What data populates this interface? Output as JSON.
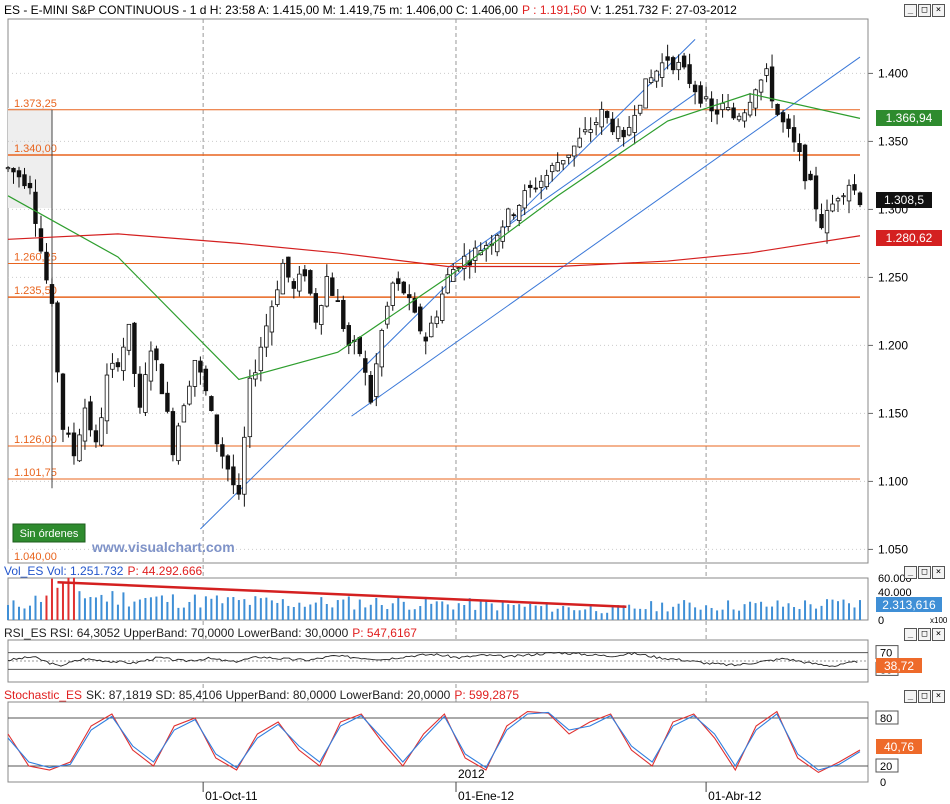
{
  "header": {
    "main": {
      "prefix": "ES - E-MINI S&P CONTINUOUS - 1 d H: 23:58 A: 1.415,00 M: 1.419,75 m: 1.406,00 C: 1.406,00",
      "p": "P : 1.191,50",
      "suffix": "V: 1.251.732  F: 27-03-2012"
    },
    "vol": {
      "prefix": "Vol_ES  Vol: 1.251.732",
      "p": "P: 44.292.666"
    },
    "rsi": {
      "prefix": "RSI_ES  RSI: 64,3052  UpperBand: 70,0000  LowerBand: 30,0000",
      "p": "P: 547,6167"
    },
    "stoch": {
      "prefix": "SK: 87,1819  SD: 85,4106  UpperBand: 80,0000  LowerBand: 20,0000",
      "name": "Stochastic_ES",
      "p": "P: 599,2875"
    }
  },
  "window_controls": [
    "_",
    "□",
    "×"
  ],
  "badges": {
    "green": "1.366,94",
    "black": "1.308,5",
    "red": "1.280,62",
    "vol": "2.313,616",
    "rsi": "38,72",
    "stoch": "40,76",
    "sin_ordenes": "Sin órdenes"
  },
  "watermark": "www.visualchart.com",
  "colors": {
    "ma_green": "#2e9e2e",
    "ma_red": "#d42020",
    "trend_blue": "#3a78d8",
    "horizontal": "#e8641e",
    "volume_bar": "#3f8fd6",
    "rsi_line": "#222222",
    "sk_line": "#e03030",
    "sd_line": "#2f7fe0"
  },
  "chart_data": [
    {
      "type": "candlestick",
      "title": "ES - E-MINI S&P CONTINUOUS",
      "y_ticks": [
        "1.050",
        "1.100",
        "1.150",
        "1.200",
        "1.250",
        "1.300",
        "1.350",
        "1.400"
      ],
      "x_ticks": [
        "01-Oct-11",
        "01-Ene-12",
        "01-Abr-12"
      ],
      "year_marker": "2012",
      "ylim": [
        1040,
        1440
      ],
      "horizontal_levels": [
        {
          "label": "1.373,25",
          "value": 1373.25
        },
        {
          "label": "1.340,00",
          "value": 1340.0
        },
        {
          "label": "1.260,25",
          "value": 1260.25
        },
        {
          "label": "1.235,50",
          "value": 1235.5
        },
        {
          "label": "1.126,00",
          "value": 1126.0
        },
        {
          "label": "1.101,75",
          "value": 1101.75
        },
        {
          "label": "1.040,00",
          "value": 1040.0
        }
      ],
      "close_path": [
        [
          0,
          1330
        ],
        [
          8,
          1320
        ],
        [
          12,
          1270
        ],
        [
          16,
          1225
        ],
        [
          20,
          1140
        ],
        [
          24,
          1120
        ],
        [
          28,
          1155
        ],
        [
          32,
          1125
        ],
        [
          36,
          1175
        ],
        [
          40,
          1190
        ],
        [
          44,
          1210
        ],
        [
          48,
          1150
        ],
        [
          52,
          1200
        ],
        [
          56,
          1170
        ],
        [
          60,
          1125
        ],
        [
          64,
          1160
        ],
        [
          68,
          1190
        ],
        [
          72,
          1165
        ],
        [
          76,
          1130
        ],
        [
          80,
          1110
        ],
        [
          84,
          1085
        ],
        [
          86,
          1130
        ],
        [
          88,
          1170
        ],
        [
          92,
          1200
        ],
        [
          96,
          1230
        ],
        [
          100,
          1260
        ],
        [
          104,
          1240
        ],
        [
          108,
          1255
        ],
        [
          112,
          1220
        ],
        [
          116,
          1250
        ],
        [
          120,
          1230
        ],
        [
          124,
          1200
        ],
        [
          128,
          1195
        ],
        [
          132,
          1160
        ],
        [
          136,
          1210
        ],
        [
          140,
          1245
        ],
        [
          144,
          1240
        ],
        [
          148,
          1220
        ],
        [
          152,
          1205
        ],
        [
          156,
          1225
        ],
        [
          160,
          1250
        ],
        [
          164,
          1262
        ],
        [
          168,
          1265
        ],
        [
          172,
          1272
        ],
        [
          176,
          1278
        ],
        [
          180,
          1290
        ],
        [
          184,
          1300
        ],
        [
          188,
          1310
        ],
        [
          192,
          1318
        ],
        [
          196,
          1325
        ],
        [
          200,
          1335
        ],
        [
          204,
          1342
        ],
        [
          208,
          1350
        ],
        [
          212,
          1360
        ],
        [
          216,
          1370
        ],
        [
          220,
          1362
        ],
        [
          224,
          1348
        ],
        [
          228,
          1375
        ],
        [
          232,
          1390
        ],
        [
          236,
          1402
        ],
        [
          240,
          1412
        ],
        [
          244,
          1405
        ],
        [
          248,
          1395
        ],
        [
          252,
          1384
        ],
        [
          256,
          1370
        ],
        [
          260,
          1375
        ],
        [
          264,
          1368
        ],
        [
          268,
          1375
        ],
        [
          272,
          1392
        ],
        [
          276,
          1398
        ],
        [
          280,
          1370
        ],
        [
          284,
          1355
        ],
        [
          288,
          1338
        ],
        [
          292,
          1316
        ],
        [
          296,
          1290
        ],
        [
          298,
          1295
        ],
        [
          302,
          1312
        ],
        [
          306,
          1320
        ],
        [
          310,
          1308
        ]
      ],
      "series": [
        {
          "name": "MA green",
          "x": [
            0,
            40,
            84,
            120,
            160,
            200,
            240,
            270,
            310
          ],
          "values": [
            1310,
            1265,
            1175,
            1195,
            1250,
            1310,
            1365,
            1385,
            1366.94
          ]
        },
        {
          "name": "MA red",
          "x": [
            0,
            40,
            84,
            120,
            160,
            200,
            240,
            270,
            310
          ],
          "values": [
            1278,
            1282,
            1275,
            1268,
            1258,
            1258,
            1262,
            1268,
            1280.62
          ]
        }
      ],
      "trendlines": [
        {
          "x": [
            70,
            250
          ],
          "values": [
            1065,
            1425
          ]
        },
        {
          "x": [
            125,
            310
          ],
          "values": [
            1148,
            1412
          ]
        },
        {
          "x": [
            160,
            250
          ],
          "values": [
            1257,
            1385
          ]
        }
      ]
    },
    {
      "type": "bar",
      "title": "Vol_ES",
      "y_ticks": [
        "60.000",
        "40.000",
        "20.000",
        "0"
      ],
      "scale_note": "x100",
      "ylim": [
        0,
        60000
      ],
      "volume_trend": {
        "x": [
          18,
          225
        ],
        "values": [
          54000,
          19000
        ]
      },
      "values_profile": [
        [
          0,
          20000
        ],
        [
          10,
          30000
        ],
        [
          18,
          56000
        ],
        [
          30,
          36000
        ],
        [
          60,
          30000
        ],
        [
          100,
          26000
        ],
        [
          140,
          26000
        ],
        [
          180,
          22000
        ],
        [
          220,
          16000
        ],
        [
          240,
          22000
        ],
        [
          280,
          22000
        ],
        [
          310,
          25000
        ]
      ]
    },
    {
      "type": "line",
      "title": "RSI_ES",
      "y_ticks": [
        "70",
        "30"
      ],
      "ylim": [
        0,
        100
      ],
      "bands": [
        70,
        30
      ],
      "values": [
        52,
        60,
        38,
        55,
        50,
        45,
        58,
        50,
        56,
        48,
        60,
        55,
        52,
        62,
        58,
        54,
        62,
        66,
        58,
        64,
        60,
        66,
        70,
        66,
        62,
        68,
        58,
        52,
        44,
        40,
        48,
        56,
        45,
        38,
        50
      ]
    },
    {
      "type": "line",
      "title": "Stochastic_ES",
      "y_ticks": [
        "80",
        "20",
        "0"
      ],
      "ylim": [
        0,
        100
      ],
      "bands": [
        80,
        20
      ],
      "series": [
        {
          "name": "SK",
          "values": [
            60,
            20,
            15,
            25,
            70,
            85,
            40,
            20,
            70,
            80,
            30,
            15,
            60,
            75,
            40,
            20,
            75,
            85,
            50,
            20,
            60,
            85,
            30,
            15,
            70,
            88,
            86,
            60,
            75,
            85,
            40,
            20,
            75,
            85,
            55,
            15,
            70,
            88,
            30,
            12,
            25,
            40
          ]
        },
        {
          "name": "SD",
          "values": [
            55,
            25,
            18,
            22,
            65,
            82,
            45,
            25,
            65,
            78,
            35,
            18,
            55,
            72,
            45,
            25,
            70,
            83,
            55,
            25,
            55,
            82,
            35,
            18,
            65,
            85,
            87,
            65,
            70,
            83,
            45,
            25,
            70,
            83,
            60,
            20,
            65,
            85,
            35,
            15,
            22,
            38
          ]
        }
      ]
    }
  ]
}
